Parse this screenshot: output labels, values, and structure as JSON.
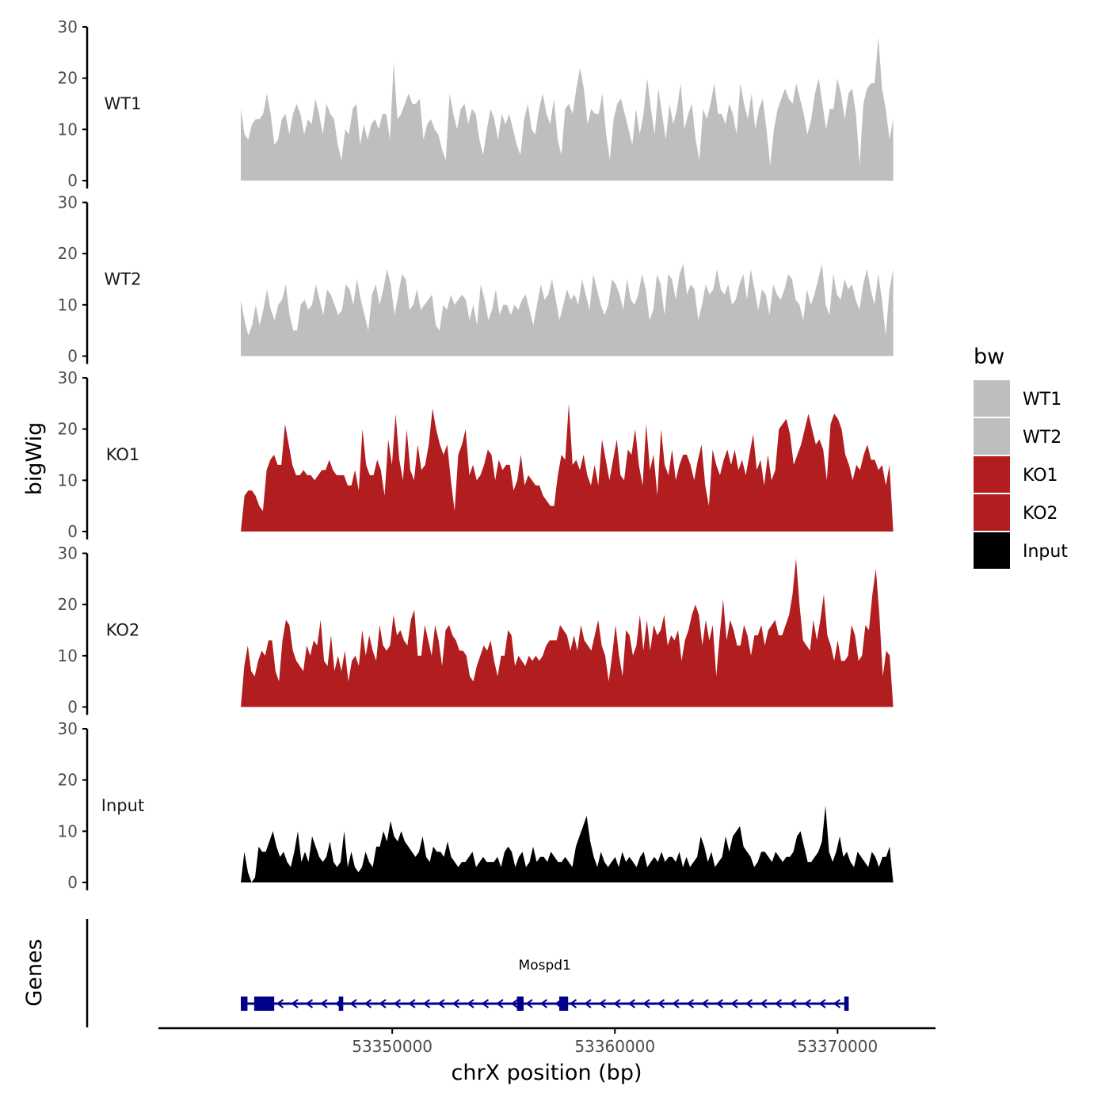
{
  "chart_data": {
    "type": "area",
    "title": "",
    "ylabel": "bigWig",
    "xlabel": "chrX position (bp)",
    "xlim": [
      53343200,
      53372500
    ],
    "xaxis_min": 53339500,
    "xaxis_max": 53374400,
    "xticks": [
      53350000,
      53360000,
      53370000
    ],
    "xtick_labels": [
      "53350000",
      "53360000",
      "53370000"
    ],
    "ylim": [
      0,
      30
    ],
    "yticks": [
      0,
      10,
      20,
      30
    ],
    "ytick_labels": [
      "0",
      "10",
      "20",
      "30"
    ],
    "legend": {
      "title": "bw",
      "position": "right",
      "entries": [
        {
          "label": "WT1",
          "color": "#bebebe"
        },
        {
          "label": "WT2",
          "color": "#bebebe"
        },
        {
          "label": "KO1",
          "color": "#b21d1f"
        },
        {
          "label": "KO2",
          "color": "#b21d1f"
        },
        {
          "label": "Input",
          "color": "#000000"
        }
      ]
    },
    "series": [
      {
        "name": "WT1",
        "color": "#bebebe",
        "values": [
          14,
          9,
          8,
          11,
          12,
          12,
          13,
          17,
          13,
          7,
          8,
          12,
          13,
          9,
          13,
          15,
          13,
          9,
          12,
          11,
          16,
          13,
          9,
          15,
          13,
          12,
          7,
          4,
          10,
          9,
          14,
          15,
          7,
          11,
          8,
          11,
          12,
          10,
          13,
          13,
          8,
          23,
          12,
          13,
          15,
          17,
          15,
          15,
          16,
          8,
          11,
          12,
          10,
          9,
          6,
          4,
          17,
          13,
          10,
          14,
          15,
          11,
          14,
          13,
          8,
          5,
          10,
          14,
          12,
          8,
          13,
          11,
          13,
          10,
          7,
          5,
          12,
          15,
          10,
          9,
          14,
          17,
          13,
          11,
          16,
          8,
          5,
          14,
          15,
          13,
          18,
          22,
          18,
          11,
          14,
          13,
          13,
          17,
          9,
          4,
          12,
          15,
          16,
          13,
          10,
          7,
          14,
          9,
          13,
          20,
          14,
          9,
          18,
          13,
          8,
          15,
          11,
          14,
          19,
          10,
          13,
          15,
          8,
          4,
          14,
          12,
          15,
          19,
          13,
          13,
          11,
          15,
          13,
          9,
          19,
          15,
          12,
          17,
          10,
          14,
          16,
          10,
          3,
          10,
          14,
          16,
          18,
          16,
          15,
          19,
          16,
          13,
          9,
          12,
          17,
          20,
          15,
          10,
          14,
          14,
          20,
          17,
          12,
          17,
          18,
          13,
          3,
          15,
          18,
          19,
          19,
          28,
          18,
          14,
          8,
          12
        ]
      },
      {
        "name": "WT2",
        "color": "#bebebe",
        "values": [
          11,
          7,
          4,
          6,
          10,
          6,
          9,
          13,
          9,
          7,
          10,
          11,
          14,
          8,
          5,
          5,
          10,
          11,
          9,
          10,
          14,
          11,
          8,
          13,
          12,
          10,
          8,
          9,
          14,
          13,
          10,
          15,
          11,
          8,
          5,
          12,
          14,
          10,
          13,
          17,
          14,
          8,
          12,
          16,
          15,
          9,
          10,
          13,
          9,
          10,
          11,
          12,
          6,
          5,
          10,
          9,
          12,
          10,
          11,
          12,
          11,
          7,
          10,
          6,
          14,
          11,
          7,
          9,
          13,
          8,
          10,
          10,
          8,
          10,
          9,
          11,
          12,
          9,
          6,
          10,
          14,
          11,
          12,
          15,
          11,
          7,
          10,
          13,
          11,
          12,
          10,
          15,
          12,
          9,
          16,
          13,
          10,
          8,
          10,
          15,
          14,
          12,
          9,
          15,
          11,
          10,
          12,
          16,
          13,
          7,
          9,
          16,
          14,
          8,
          16,
          15,
          11,
          16,
          18,
          12,
          14,
          13,
          7,
          10,
          14,
          12,
          13,
          17,
          13,
          12,
          14,
          10,
          11,
          14,
          16,
          11,
          17,
          13,
          9,
          13,
          12,
          8,
          14,
          12,
          11,
          13,
          16,
          15,
          11,
          10,
          7,
          13,
          10,
          12,
          15,
          18,
          10,
          8,
          16,
          12,
          11,
          15,
          13,
          14,
          11,
          9,
          14,
          17,
          13,
          10,
          16,
          11,
          4,
          13,
          17
        ]
      },
      {
        "name": "KO1",
        "color": "#b21d1f",
        "values": [
          0,
          7,
          8,
          8,
          7,
          5,
          4,
          12,
          14,
          15,
          13,
          13,
          21,
          17,
          13,
          11,
          11,
          12,
          11,
          11,
          10,
          11,
          12,
          12,
          14,
          12,
          11,
          11,
          11,
          9,
          9,
          12,
          8,
          20,
          13,
          11,
          11,
          14,
          12,
          7,
          18,
          13,
          23,
          14,
          10,
          20,
          12,
          10,
          17,
          12,
          13,
          17,
          24,
          20,
          17,
          15,
          17,
          10,
          4,
          15,
          17,
          20,
          11,
          13,
          10,
          11,
          13,
          16,
          15,
          10,
          14,
          12,
          13,
          13,
          8,
          10,
          15,
          9,
          11,
          10,
          9,
          9,
          7,
          6,
          5,
          5,
          11,
          15,
          14,
          25,
          13,
          14,
          12,
          15,
          11,
          9,
          13,
          9,
          18,
          14,
          10,
          14,
          18,
          11,
          10,
          16,
          15,
          20,
          13,
          9,
          21,
          12,
          15,
          7,
          20,
          13,
          11,
          16,
          10,
          13,
          15,
          15,
          13,
          10,
          14,
          17,
          9,
          5,
          16,
          13,
          11,
          14,
          16,
          13,
          16,
          12,
          14,
          11,
          15,
          19,
          12,
          14,
          9,
          15,
          10,
          12,
          20,
          21,
          22,
          19,
          13,
          15,
          17,
          20,
          23,
          20,
          17,
          18,
          16,
          10,
          21,
          23,
          22,
          20,
          15,
          13,
          10,
          13,
          12,
          15,
          17,
          14,
          14,
          12,
          13,
          9,
          13,
          0
        ]
      },
      {
        "name": "KO2",
        "color": "#b21d1f",
        "values": [
          0,
          8,
          12,
          7,
          6,
          9,
          11,
          10,
          13,
          13,
          7,
          5,
          13,
          17,
          16,
          11,
          9,
          8,
          7,
          12,
          10,
          13,
          12,
          17,
          9,
          8,
          14,
          7,
          10,
          7,
          11,
          5,
          9,
          10,
          8,
          15,
          10,
          14,
          11,
          9,
          16,
          12,
          11,
          12,
          18,
          14,
          15,
          13,
          12,
          17,
          19,
          10,
          10,
          16,
          13,
          10,
          16,
          13,
          8,
          15,
          16,
          14,
          13,
          11,
          11,
          10,
          6,
          5,
          8,
          10,
          12,
          11,
          13,
          9,
          6,
          10,
          10,
          15,
          14,
          8,
          10,
          9,
          8,
          10,
          9,
          10,
          9,
          10,
          12,
          13,
          13,
          13,
          16,
          15,
          14,
          11,
          14,
          11,
          16,
          13,
          12,
          11,
          14,
          17,
          12,
          10,
          5,
          10,
          16,
          10,
          6,
          15,
          14,
          10,
          12,
          18,
          11,
          17,
          11,
          16,
          14,
          15,
          18,
          12,
          14,
          13,
          15,
          9,
          13,
          15,
          18,
          20,
          18,
          12,
          17,
          13,
          16,
          6,
          14,
          21,
          13,
          17,
          15,
          12,
          12,
          16,
          14,
          10,
          14,
          14,
          16,
          12,
          15,
          16,
          17,
          14,
          14,
          16,
          18,
          22,
          29,
          20,
          13,
          12,
          11,
          17,
          13,
          17,
          22,
          14,
          12,
          9,
          13,
          9,
          9,
          10,
          16,
          14,
          9,
          10,
          16,
          15,
          22,
          27,
          18,
          6,
          11,
          10,
          0
        ]
      },
      {
        "name": "Input",
        "color": "#000000",
        "values": [
          0,
          6,
          2,
          0,
          1,
          7,
          6,
          6,
          8,
          10,
          7,
          5,
          6,
          4,
          3,
          6,
          10,
          4,
          6,
          4,
          9,
          7,
          5,
          4,
          5,
          8,
          4,
          3,
          4,
          10,
          3,
          6,
          3,
          2,
          3,
          6,
          4,
          3,
          7,
          7,
          10,
          8,
          12,
          9,
          8,
          10,
          8,
          7,
          6,
          5,
          6,
          9,
          5,
          4,
          7,
          6,
          6,
          5,
          8,
          5,
          4,
          3,
          4,
          4,
          5,
          6,
          3,
          4,
          5,
          4,
          4,
          4,
          5,
          3,
          6,
          7,
          6,
          3,
          5,
          6,
          3,
          4,
          7,
          4,
          5,
          5,
          4,
          6,
          5,
          4,
          4,
          5,
          4,
          3,
          7,
          9,
          11,
          13,
          8,
          5,
          3,
          6,
          4,
          3,
          4,
          5,
          3,
          6,
          4,
          5,
          4,
          3,
          5,
          6,
          3,
          4,
          5,
          4,
          6,
          4,
          5,
          5,
          4,
          6,
          3,
          5,
          3,
          4,
          5,
          9,
          7,
          4,
          6,
          3,
          4,
          5,
          9,
          6,
          9,
          10,
          11,
          7,
          6,
          5,
          3,
          4,
          6,
          6,
          5,
          4,
          6,
          5,
          4,
          5,
          5,
          6,
          9,
          10,
          7,
          4,
          4,
          5,
          6,
          8,
          15,
          6,
          4,
          6,
          9,
          5,
          6,
          4,
          3,
          6,
          5,
          4,
          3,
          6,
          5,
          3,
          5,
          5,
          7,
          0
        ]
      }
    ],
    "genes": {
      "axis_label": "Genes",
      "label": "Mospd1",
      "strand": "-",
      "start": 53343200,
      "end": 53370500,
      "exons": [
        [
          53343200,
          53343500
        ],
        [
          53343800,
          53344700
        ],
        [
          53347600,
          53347800
        ],
        [
          53355600,
          53355900
        ],
        [
          53357500,
          53357900
        ],
        [
          53370300,
          53370500
        ]
      ]
    }
  }
}
